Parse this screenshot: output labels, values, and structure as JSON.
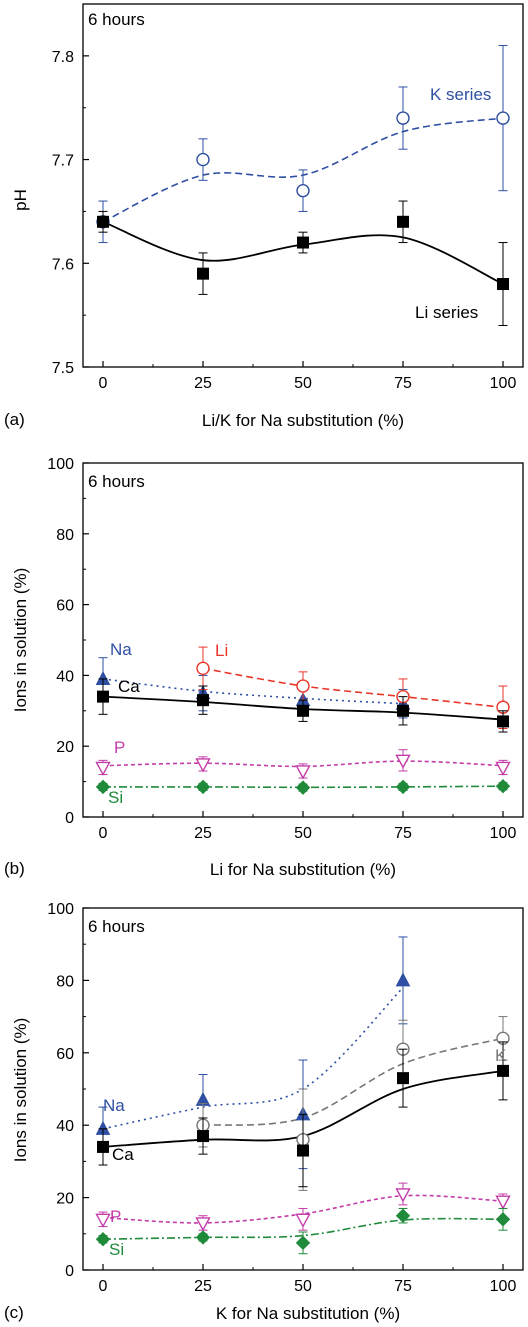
{
  "colors": {
    "li": "#000000",
    "k": "#2e4fa3",
    "na": "#2e4fa3",
    "ca": "#000000",
    "p": "#c43ca9",
    "si": "#1f8a3a",
    "li_ion": "#e8362a",
    "k_ion": "#777777"
  },
  "chart_data": [
    {
      "type": "scatter",
      "panel_label": "(a)",
      "annotation": "6 hours",
      "xlabel": "Li/K for Na substitution (%)",
      "ylabel": "pH",
      "x": [
        0,
        25,
        50,
        75,
        100
      ],
      "xlim": [
        -5,
        105
      ],
      "ylim": [
        7.5,
        7.85
      ],
      "x_ticks": [
        0,
        25,
        50,
        75,
        100
      ],
      "y_ticks": [
        7.5,
        7.6,
        7.7,
        7.8
      ],
      "y_tick_labels": [
        "7.5",
        "7.6",
        "7.7",
        "7.8"
      ],
      "series": [
        {
          "key": "k",
          "name": "K series",
          "label": "K series",
          "marker": "circle-open",
          "line": "dashed",
          "values": [
            7.64,
            7.7,
            7.67,
            7.74,
            7.74
          ],
          "errors": [
            0.02,
            0.02,
            0.02,
            0.03,
            0.07
          ],
          "fit": [
            7.64,
            7.685,
            7.685,
            7.727,
            7.74
          ]
        },
        {
          "key": "li",
          "name": "Li series",
          "label": "Li series",
          "marker": "square-filled",
          "line": "solid",
          "values": [
            7.64,
            7.59,
            7.62,
            7.64,
            7.58
          ],
          "errors": [
            0.01,
            0.02,
            0.01,
            0.02,
            0.04
          ],
          "fit": [
            7.64,
            7.603,
            7.618,
            7.625,
            7.58
          ]
        }
      ]
    },
    {
      "type": "scatter",
      "panel_label": "(b)",
      "annotation": "6 hours",
      "xlabel": "Li for Na substitution (%)",
      "ylabel": "Ions in solution (%)",
      "x": [
        0,
        25,
        50,
        75,
        100
      ],
      "xlim": [
        -5,
        105
      ],
      "ylim": [
        0,
        100
      ],
      "x_ticks": [
        0,
        25,
        50,
        75,
        100
      ],
      "y_ticks": [
        0,
        20,
        40,
        60,
        80,
        100
      ],
      "y_tick_labels": [
        "0",
        "20",
        "40",
        "60",
        "80",
        "100"
      ],
      "series": [
        {
          "key": "na",
          "name": "Na",
          "label": "Na",
          "marker": "triangle-filled",
          "line": "dotted",
          "values": [
            39,
            35,
            33,
            32,
            null
          ],
          "errors": [
            6,
            5,
            4,
            4,
            null
          ],
          "fit": [
            39,
            35.5,
            33.5,
            32,
            null
          ]
        },
        {
          "key": "li_ion",
          "name": "Li",
          "label": "Li",
          "marker": "circle-open",
          "line": "dashed",
          "values": [
            null,
            42,
            37,
            34,
            31
          ],
          "errors": [
            null,
            6,
            4,
            5,
            6
          ],
          "fit": [
            null,
            42,
            37,
            34,
            31
          ]
        },
        {
          "key": "ca",
          "name": "Ca",
          "label": "Ca",
          "marker": "square-filled",
          "line": "solid",
          "values": [
            34,
            33,
            30,
            30,
            27
          ],
          "errors": [
            5,
            4,
            3,
            4,
            3
          ],
          "fit": [
            34,
            32.5,
            30.5,
            29.5,
            27.5
          ]
        },
        {
          "key": "p",
          "name": "P",
          "label": "P",
          "marker": "triangle-down-open",
          "line": "dashed-fine",
          "values": [
            14,
            15,
            13,
            16,
            14
          ],
          "errors": [
            2,
            2,
            2,
            3,
            2
          ],
          "fit": [
            14.5,
            15.2,
            14.3,
            15.8,
            14.5
          ]
        },
        {
          "key": "si",
          "name": "Si",
          "label": "Si",
          "marker": "diamond-filled",
          "line": "dashdot",
          "values": [
            8.5,
            8.5,
            8.3,
            8.5,
            8.7
          ],
          "errors": [
            1,
            1,
            1,
            1,
            1
          ],
          "fit": [
            8.5,
            8.5,
            8.4,
            8.5,
            8.7
          ]
        }
      ]
    },
    {
      "type": "scatter",
      "panel_label": "(c)",
      "annotation": "6 hours",
      "xlabel": "K for Na substitution (%)",
      "ylabel": "Ions in solution (%)",
      "x": [
        0,
        25,
        50,
        75,
        100
      ],
      "xlim": [
        -5,
        105
      ],
      "ylim": [
        0,
        100
      ],
      "x_ticks": [
        0,
        25,
        50,
        75,
        100
      ],
      "y_ticks": [
        0,
        20,
        40,
        60,
        80,
        100
      ],
      "y_tick_labels": [
        "0",
        "20",
        "40",
        "60",
        "80",
        "100"
      ],
      "series": [
        {
          "key": "na",
          "name": "Na",
          "label": "Na",
          "marker": "triangle-filled",
          "line": "dotted",
          "values": [
            39,
            47,
            43,
            80,
            null
          ],
          "errors": [
            6,
            7,
            15,
            12,
            null
          ],
          "fit": [
            39,
            45,
            50,
            78,
            null
          ]
        },
        {
          "key": "k_ion",
          "name": "K",
          "label": "K",
          "marker": "circle-open",
          "line": "dashed",
          "values": [
            null,
            40,
            36,
            61,
            64
          ],
          "errors": [
            null,
            6,
            14,
            8,
            6
          ],
          "fit": [
            null,
            40,
            42,
            57,
            64
          ]
        },
        {
          "key": "ca",
          "name": "Ca",
          "label": "Ca",
          "marker": "square-filled",
          "line": "solid",
          "values": [
            34,
            37,
            33,
            53,
            55
          ],
          "errors": [
            5,
            5,
            10,
            8,
            8
          ],
          "fit": [
            34,
            36,
            37,
            50,
            55
          ]
        },
        {
          "key": "p",
          "name": "P",
          "label": "P",
          "marker": "triangle-down-open",
          "line": "dashed-fine",
          "values": [
            14,
            13,
            14,
            21,
            19
          ],
          "errors": [
            2,
            2,
            3,
            3,
            2
          ],
          "fit": [
            14.5,
            13,
            15.5,
            20.5,
            19
          ]
        },
        {
          "key": "si",
          "name": "Si",
          "label": "Si",
          "marker": "diamond-filled",
          "line": "dashdot",
          "values": [
            8.5,
            9,
            7.5,
            15,
            14
          ],
          "errors": [
            1,
            1,
            3,
            2,
            3
          ],
          "fit": [
            8.5,
            9,
            9.5,
            13.8,
            14
          ]
        }
      ]
    }
  ]
}
